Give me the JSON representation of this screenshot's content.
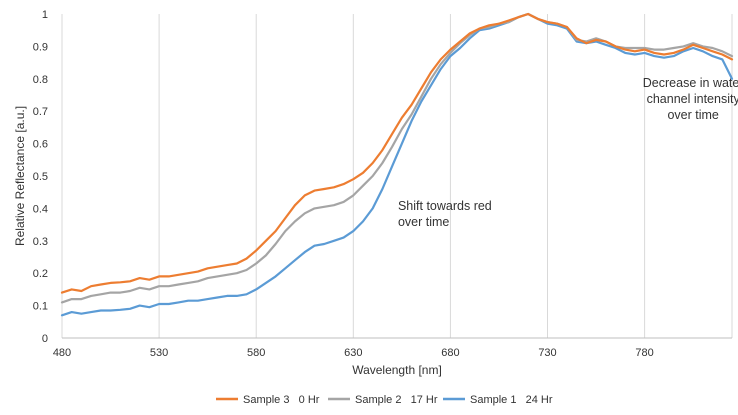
{
  "chart_data": {
    "type": "line",
    "xlabel": "Wavelength [nm]",
    "ylabel": "Relative Reflectance [a.u.]",
    "xlim": [
      480,
      825
    ],
    "ylim": [
      0,
      1
    ],
    "x_ticks": [
      "480",
      "530",
      "580",
      "630",
      "680",
      "730",
      "780"
    ],
    "y_ticks": [
      "0",
      "0.1",
      "0.2",
      "0.3",
      "0.4",
      "0.5",
      "0.6",
      "0.7",
      "0.8",
      "0.9",
      "1"
    ],
    "grid": "vertical",
    "legend_position": "bottom",
    "annotations": [
      {
        "lines": [
          "Shift towards red",
          "over time"
        ],
        "x": 653,
        "y": 0.395,
        "anchor": "start"
      },
      {
        "lines": [
          "Decrease in water",
          "channel intensity",
          "over time"
        ],
        "x": 805,
        "y": 0.775,
        "anchor": "middle"
      }
    ],
    "x": [
      480,
      485,
      490,
      495,
      500,
      505,
      510,
      515,
      520,
      525,
      530,
      535,
      540,
      545,
      550,
      555,
      560,
      565,
      570,
      575,
      580,
      585,
      590,
      595,
      600,
      605,
      610,
      615,
      620,
      625,
      630,
      635,
      640,
      645,
      650,
      655,
      660,
      665,
      670,
      675,
      680,
      685,
      690,
      695,
      700,
      705,
      710,
      715,
      720,
      725,
      730,
      735,
      740,
      745,
      750,
      755,
      760,
      765,
      770,
      775,
      780,
      785,
      790,
      795,
      800,
      805,
      810,
      815,
      820,
      825
    ],
    "series": [
      {
        "name": "Sample 3   0 Hr",
        "color": "#ED7D31",
        "values": [
          0.14,
          0.15,
          0.145,
          0.16,
          0.165,
          0.17,
          0.172,
          0.175,
          0.185,
          0.18,
          0.19,
          0.19,
          0.195,
          0.2,
          0.205,
          0.215,
          0.22,
          0.225,
          0.23,
          0.245,
          0.27,
          0.3,
          0.33,
          0.37,
          0.41,
          0.44,
          0.455,
          0.46,
          0.465,
          0.475,
          0.49,
          0.51,
          0.54,
          0.58,
          0.63,
          0.68,
          0.72,
          0.77,
          0.82,
          0.86,
          0.89,
          0.915,
          0.94,
          0.955,
          0.965,
          0.97,
          0.98,
          0.99,
          1.0,
          0.985,
          0.975,
          0.97,
          0.96,
          0.925,
          0.91,
          0.92,
          0.915,
          0.9,
          0.89,
          0.885,
          0.89,
          0.88,
          0.875,
          0.88,
          0.89,
          0.905,
          0.895,
          0.885,
          0.875,
          0.86
        ]
      },
      {
        "name": "Sample 2   17 Hr",
        "color": "#A5A5A5",
        "values": [
          0.11,
          0.12,
          0.12,
          0.13,
          0.135,
          0.14,
          0.14,
          0.145,
          0.155,
          0.15,
          0.16,
          0.16,
          0.165,
          0.17,
          0.175,
          0.185,
          0.19,
          0.195,
          0.2,
          0.21,
          0.23,
          0.255,
          0.29,
          0.33,
          0.36,
          0.385,
          0.4,
          0.405,
          0.41,
          0.42,
          0.44,
          0.47,
          0.5,
          0.54,
          0.59,
          0.645,
          0.69,
          0.745,
          0.8,
          0.845,
          0.88,
          0.91,
          0.935,
          0.955,
          0.96,
          0.97,
          0.975,
          0.99,
          1.0,
          0.985,
          0.975,
          0.97,
          0.96,
          0.92,
          0.915,
          0.925,
          0.915,
          0.9,
          0.895,
          0.895,
          0.895,
          0.89,
          0.89,
          0.895,
          0.9,
          0.91,
          0.9,
          0.895,
          0.885,
          0.87
        ]
      },
      {
        "name": "Sample 1   24 Hr",
        "color": "#5B9BD5",
        "values": [
          0.07,
          0.08,
          0.075,
          0.08,
          0.085,
          0.085,
          0.087,
          0.09,
          0.1,
          0.095,
          0.105,
          0.105,
          0.11,
          0.115,
          0.115,
          0.12,
          0.125,
          0.13,
          0.13,
          0.135,
          0.15,
          0.17,
          0.19,
          0.215,
          0.24,
          0.265,
          0.285,
          0.29,
          0.3,
          0.31,
          0.33,
          0.36,
          0.4,
          0.46,
          0.53,
          0.6,
          0.67,
          0.73,
          0.78,
          0.83,
          0.87,
          0.895,
          0.925,
          0.95,
          0.955,
          0.965,
          0.975,
          0.99,
          1.0,
          0.985,
          0.97,
          0.965,
          0.955,
          0.915,
          0.91,
          0.915,
          0.905,
          0.895,
          0.88,
          0.875,
          0.88,
          0.87,
          0.865,
          0.87,
          0.885,
          0.895,
          0.885,
          0.87,
          0.86,
          0.8
        ]
      }
    ]
  }
}
